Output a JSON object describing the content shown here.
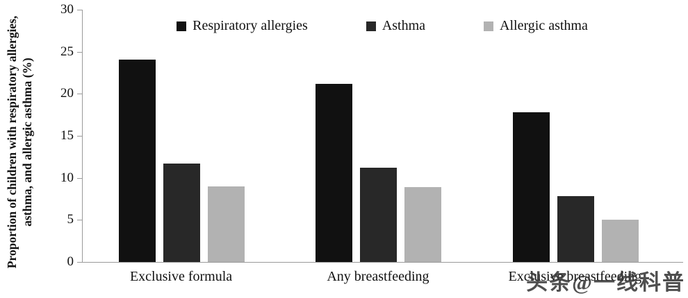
{
  "chart_data": {
    "type": "bar",
    "categories": [
      "Exclusive formula",
      "Any breastfeeding",
      "Exclusive breastfeeding"
    ],
    "series": [
      {
        "name": "Respiratory allergies",
        "color": "#111111",
        "values": [
          24.1,
          21.2,
          17.8
        ]
      },
      {
        "name": "Asthma",
        "color": "#282828",
        "values": [
          11.7,
          11.2,
          7.8
        ]
      },
      {
        "name": "Allergic asthma",
        "color": "#b2b2b2",
        "values": [
          9.0,
          8.9,
          5.0
        ]
      }
    ],
    "title": "",
    "xlabel": "",
    "ylabel": "Proportion of children with respiratory allergies, asthma, and allergic asthma (%)",
    "ylim": [
      0,
      30
    ],
    "yticks": [
      0,
      5,
      10,
      15,
      20,
      25,
      30
    ],
    "legend_position": "top",
    "grid": false
  },
  "watermark": "头条@一线科普"
}
